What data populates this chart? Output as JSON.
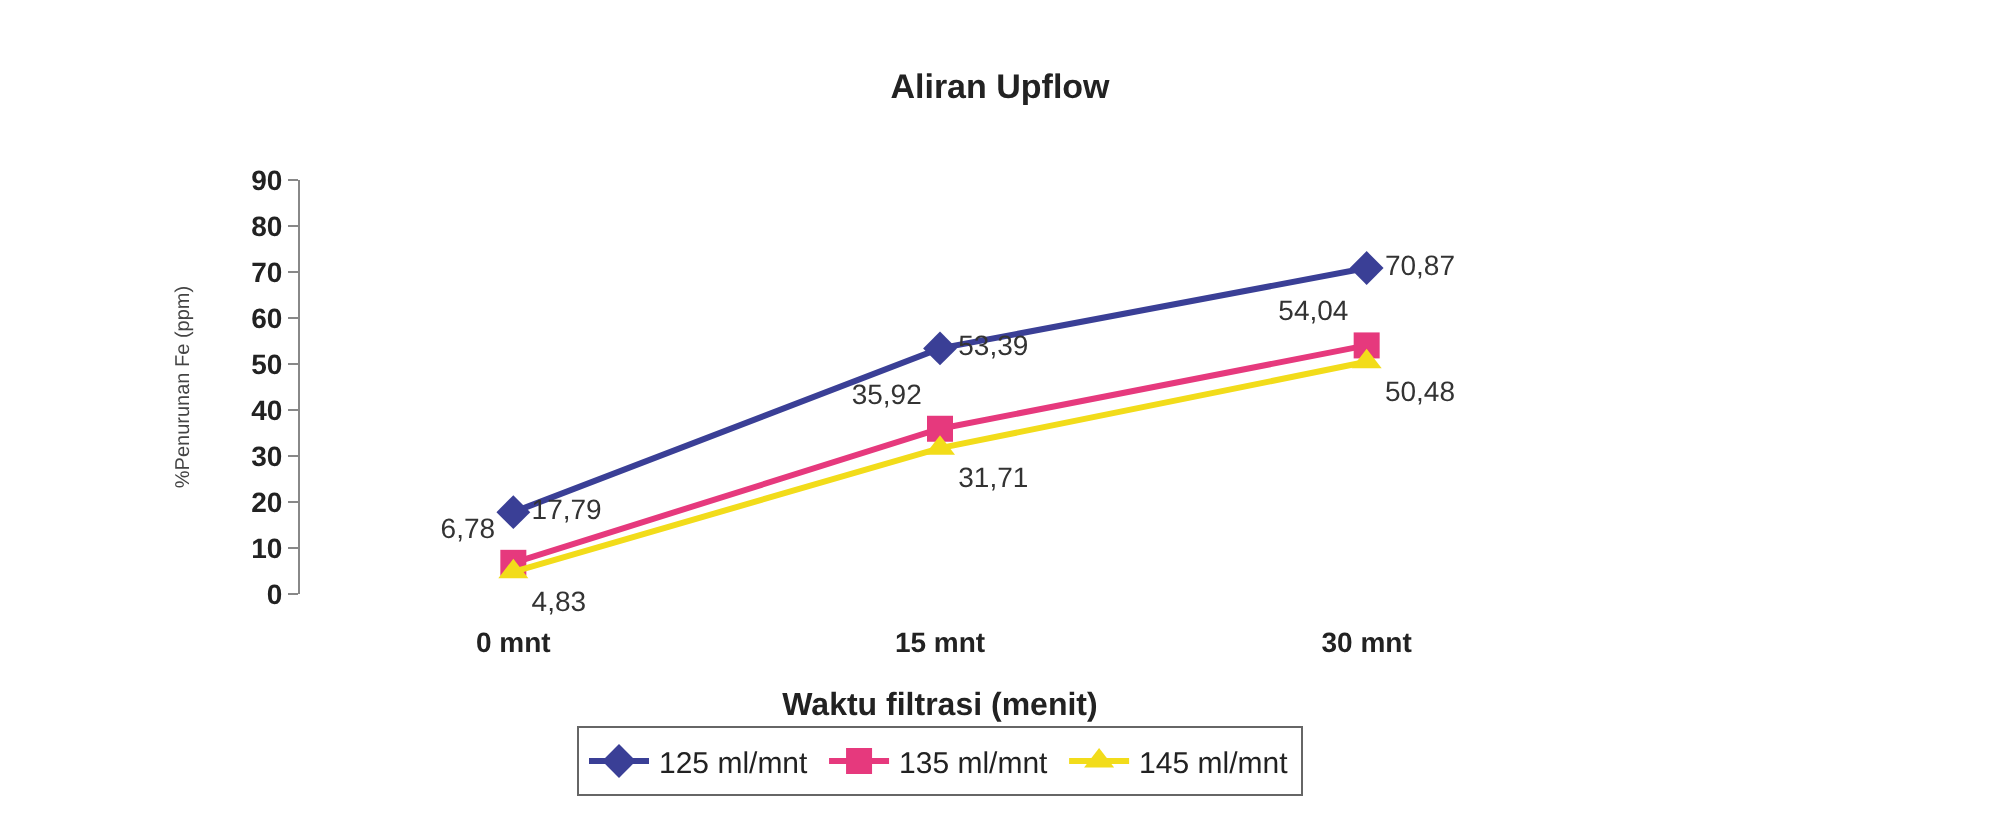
{
  "chart_data": {
    "type": "line",
    "title": "Aliran Upflow",
    "xlabel": "Waktu filtrasi (menit)",
    "ylabel": "%Penurunan Fe (ppm)",
    "categories": [
      "0 mnt",
      "15 mnt",
      "30 mnt"
    ],
    "series": [
      {
        "name": "125 ml/mnt",
        "color": "#3a3f96",
        "values": [
          17.79,
          53.39,
          70.87
        ],
        "marker": "diamond",
        "value_labels": [
          "17,79",
          "53,39",
          "70,87"
        ]
      },
      {
        "name": "135 ml/mnt",
        "color": "#e6397d",
        "values": [
          6.78,
          35.92,
          54.04
        ],
        "marker": "square",
        "value_labels": [
          "6,78",
          "35,92",
          "54,04"
        ]
      },
      {
        "name": "145 ml/mnt",
        "color": "#f2dc1a",
        "values": [
          4.83,
          31.71,
          50.48
        ],
        "marker": "triangle",
        "value_labels": [
          "4,83",
          "31,71",
          "50,48"
        ]
      }
    ],
    "ylim": [
      0,
      90
    ],
    "yticks": [
      0,
      10,
      20,
      30,
      40,
      50,
      60,
      70,
      80,
      90
    ],
    "grid": false,
    "legend": "bottom",
    "line_style": "solid"
  }
}
